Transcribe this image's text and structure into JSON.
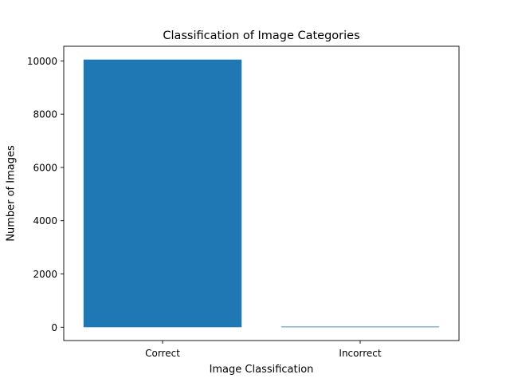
{
  "chart_data": {
    "type": "bar",
    "title": "Classification of Image Categories",
    "xlabel": "Image Classification",
    "ylabel": "Number of Images",
    "categories": [
      "Correct",
      "Incorrect"
    ],
    "values": [
      10050,
      5
    ],
    "ylim": [
      -500,
      10550
    ],
    "yticks": [
      0,
      2000,
      4000,
      6000,
      8000,
      10000
    ],
    "ytick_labels": [
      "0",
      "2000",
      "4000",
      "6000",
      "8000",
      "10000"
    ],
    "grid": false,
    "legend": "none",
    "bar_color": "#1f77b4"
  }
}
